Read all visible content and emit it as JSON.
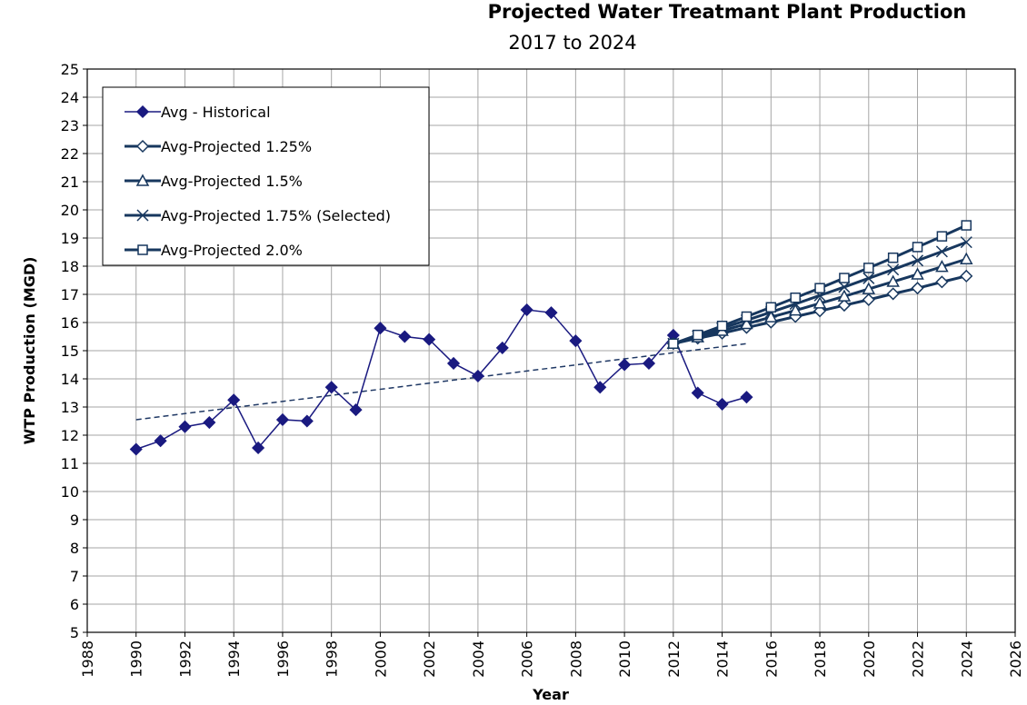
{
  "chart_data": {
    "type": "line",
    "title": "Projected Water Treatmant Plant Production",
    "subtitle": "2017 to 2024",
    "x_label": "Year",
    "y_label": "WTP Production (MGD)",
    "xlim": [
      1988,
      2026
    ],
    "xticks": [
      1988,
      1990,
      1992,
      1994,
      1996,
      1998,
      2000,
      2002,
      2004,
      2006,
      2008,
      2010,
      2012,
      2014,
      2016,
      2018,
      2020,
      2022,
      2024,
      2026
    ],
    "ylim": [
      5,
      25
    ],
    "yticks": [
      5,
      6,
      7,
      8,
      9,
      10,
      11,
      12,
      13,
      14,
      15,
      16,
      17,
      18,
      19,
      20,
      21,
      22,
      23,
      24,
      25
    ],
    "grid": true,
    "legend": "top-left",
    "series": [
      {
        "name": "Avg - Historical",
        "color": "#1a1a80",
        "marker": "diamond-filled",
        "x": [
          1990,
          1991,
          1992,
          1993,
          1994,
          1995,
          1996,
          1997,
          1998,
          1999,
          2000,
          2001,
          2002,
          2003,
          2004,
          2005,
          2006,
          2007,
          2008,
          2009,
          2010,
          2011,
          2012,
          2013,
          2014,
          2015
        ],
        "values": [
          11.5,
          11.8,
          12.3,
          12.45,
          13.25,
          11.55,
          12.55,
          12.5,
          13.7,
          12.9,
          15.8,
          15.5,
          15.4,
          14.55,
          14.1,
          15.1,
          16.45,
          16.35,
          15.35,
          13.7,
          14.5,
          14.55,
          15.55,
          13.5,
          13.1,
          13.35
        ]
      },
      {
        "name": "Avg-Projected 1.25%",
        "color": "#17375e",
        "marker": "diamond-open",
        "x": [
          2012,
          2013,
          2014,
          2015,
          2016,
          2017,
          2018,
          2019,
          2020,
          2021,
          2022,
          2023,
          2024
        ],
        "values": [
          15.25,
          15.44,
          15.62,
          15.82,
          16.01,
          16.21,
          16.41,
          16.61,
          16.81,
          17.02,
          17.22,
          17.44,
          17.65
        ]
      },
      {
        "name": "Avg-Projected 1.5%",
        "color": "#17375e",
        "marker": "triangle-open",
        "x": [
          2012,
          2013,
          2014,
          2015,
          2016,
          2017,
          2018,
          2019,
          2020,
          2021,
          2022,
          2023,
          2024
        ],
        "values": [
          15.25,
          15.48,
          15.71,
          15.95,
          16.19,
          16.43,
          16.68,
          16.93,
          17.19,
          17.45,
          17.71,
          17.98,
          18.25
        ]
      },
      {
        "name": "Avg-Projected 1.75% (Selected)",
        "color": "#17375e",
        "marker": "x",
        "x": [
          2012,
          2013,
          2014,
          2015,
          2016,
          2017,
          2018,
          2019,
          2020,
          2021,
          2022,
          2023,
          2024
        ],
        "values": [
          15.25,
          15.52,
          15.8,
          16.08,
          16.37,
          16.66,
          16.96,
          17.26,
          17.57,
          17.88,
          18.2,
          18.52,
          18.85
        ]
      },
      {
        "name": "Avg-Projected 2.0%",
        "color": "#17375e",
        "marker": "square-open",
        "x": [
          2012,
          2013,
          2014,
          2015,
          2016,
          2017,
          2018,
          2019,
          2020,
          2021,
          2022,
          2023,
          2024
        ],
        "values": [
          15.25,
          15.56,
          15.88,
          16.21,
          16.54,
          16.88,
          17.22,
          17.58,
          17.94,
          18.3,
          18.68,
          19.06,
          19.45
        ]
      }
    ],
    "trendline": {
      "color": "#1f3864",
      "x": [
        1990,
        2015
      ],
      "values": [
        12.55,
        15.25
      ]
    }
  }
}
